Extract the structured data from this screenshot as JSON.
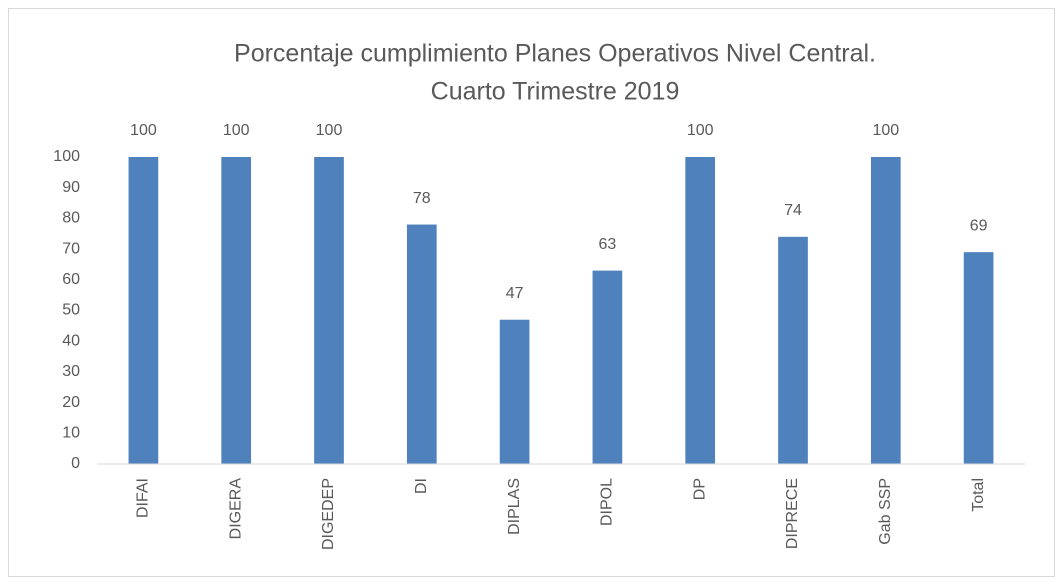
{
  "chart_data": {
    "type": "bar",
    "title": [
      "Porcentaje cumplimiento Planes Operativos Nivel Central.",
      "Cuarto Trimestre 2019"
    ],
    "categories": [
      "DIFAI",
      "DIGERA",
      "DIGEDEP",
      "DI",
      "DIPLAS",
      "DIPOL",
      "DP",
      "DIPRECE",
      "Gab SSP",
      "Total"
    ],
    "values": [
      100,
      100,
      100,
      78,
      47,
      63,
      100,
      74,
      100,
      69
    ],
    "color": "#4f81bd",
    "ylim": [
      0,
      100
    ],
    "yticks": [
      0,
      10,
      20,
      30,
      40,
      50,
      60,
      70,
      80,
      90,
      100
    ],
    "grid": false
  }
}
